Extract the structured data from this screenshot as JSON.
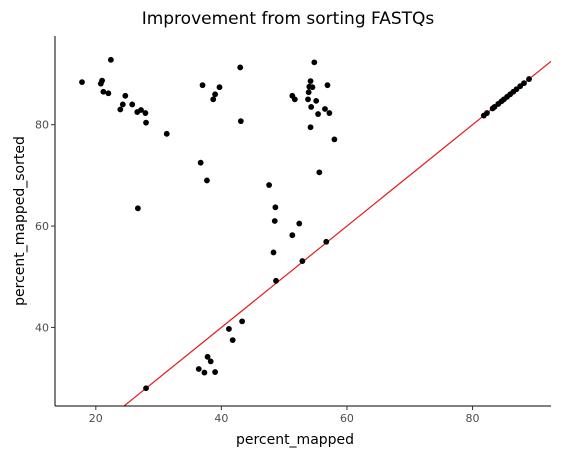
{
  "chart_data": {
    "type": "scatter",
    "title": "Improvement from sorting FASTQs",
    "xlabel": "percent_mapped",
    "ylabel": "percent_mapped_sorted",
    "xlim": [
      13.5,
      92.5
    ],
    "ylim": [
      24.5,
      97.5
    ],
    "xticks": [
      20,
      40,
      60,
      80
    ],
    "yticks": [
      40,
      60,
      80
    ],
    "grid": false,
    "point_color": "#000000",
    "reference_line": {
      "type": "y=x",
      "color": "#e41a1c"
    },
    "points": [
      [
        17.8,
        88.4
      ],
      [
        20.8,
        88.1
      ],
      [
        21.0,
        88.7
      ],
      [
        21.2,
        86.5
      ],
      [
        22.0,
        86.2
      ],
      [
        22.4,
        92.8
      ],
      [
        23.9,
        83.0
      ],
      [
        24.3,
        84.0
      ],
      [
        24.7,
        85.7
      ],
      [
        25.8,
        84.0
      ],
      [
        26.6,
        82.5
      ],
      [
        26.7,
        63.5
      ],
      [
        27.2,
        82.9
      ],
      [
        27.9,
        82.3
      ],
      [
        28.0,
        80.4
      ],
      [
        28.0,
        28.0
      ],
      [
        31.3,
        78.2
      ],
      [
        36.7,
        72.5
      ],
      [
        36.4,
        31.8
      ],
      [
        37.0,
        87.8
      ],
      [
        37.3,
        31.1
      ],
      [
        37.7,
        69.0
      ],
      [
        37.8,
        34.2
      ],
      [
        38.3,
        33.3
      ],
      [
        38.7,
        85.0
      ],
      [
        39.0,
        86.0
      ],
      [
        39.0,
        31.2
      ],
      [
        39.7,
        87.4
      ],
      [
        41.2,
        39.7
      ],
      [
        41.8,
        37.5
      ],
      [
        43.0,
        91.3
      ],
      [
        43.1,
        80.7
      ],
      [
        43.3,
        41.2
      ],
      [
        47.6,
        68.1
      ],
      [
        48.3,
        54.8
      ],
      [
        48.5,
        61.0
      ],
      [
        48.6,
        63.7
      ],
      [
        48.7,
        49.2
      ],
      [
        51.3,
        85.7
      ],
      [
        51.3,
        58.2
      ],
      [
        51.7,
        85.0
      ],
      [
        52.4,
        60.5
      ],
      [
        52.9,
        53.1
      ],
      [
        53.8,
        85.0
      ],
      [
        53.9,
        86.4
      ],
      [
        54.0,
        87.5
      ],
      [
        54.2,
        88.6
      ],
      [
        54.2,
        79.5
      ],
      [
        54.3,
        83.5
      ],
      [
        54.5,
        87.4
      ],
      [
        54.8,
        92.3
      ],
      [
        55.1,
        84.7
      ],
      [
        55.4,
        82.1
      ],
      [
        55.6,
        70.6
      ],
      [
        56.5,
        83.1
      ],
      [
        56.7,
        56.9
      ],
      [
        56.9,
        87.8
      ],
      [
        57.2,
        82.3
      ],
      [
        58.0,
        77.1
      ],
      [
        81.8,
        81.8
      ],
      [
        82.3,
        82.3
      ],
      [
        83.2,
        83.2
      ],
      [
        83.5,
        83.5
      ],
      [
        84.1,
        84.1
      ],
      [
        84.6,
        84.6
      ],
      [
        85.0,
        85.0
      ],
      [
        85.5,
        85.5
      ],
      [
        86.0,
        86.0
      ],
      [
        86.5,
        86.5
      ],
      [
        87.0,
        87.0
      ],
      [
        87.6,
        87.6
      ],
      [
        88.2,
        88.2
      ],
      [
        89.0,
        89.0
      ]
    ]
  }
}
